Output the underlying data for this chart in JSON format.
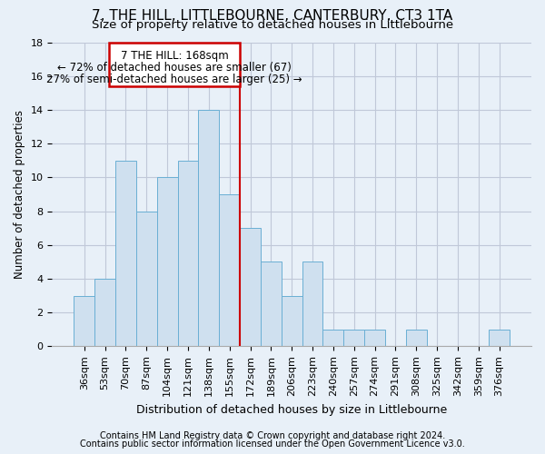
{
  "title": "7, THE HILL, LITTLEBOURNE, CANTERBURY, CT3 1TA",
  "subtitle": "Size of property relative to detached houses in Littlebourne",
  "xlabel": "Distribution of detached houses by size in Littlebourne",
  "ylabel": "Number of detached properties",
  "footer1": "Contains HM Land Registry data © Crown copyright and database right 2024.",
  "footer2": "Contains public sector information licensed under the Open Government Licence v3.0.",
  "annotation_title": "7 THE HILL: 168sqm",
  "annotation_line1": "← 72% of detached houses are smaller (67)",
  "annotation_line2": "27% of semi-detached houses are larger (25) →",
  "bar_categories": [
    "36sqm",
    "53sqm",
    "70sqm",
    "87sqm",
    "104sqm",
    "121sqm",
    "138sqm",
    "155sqm",
    "172sqm",
    "189sqm",
    "206sqm",
    "223sqm",
    "240sqm",
    "257sqm",
    "274sqm",
    "291sqm",
    "308sqm",
    "325sqm",
    "342sqm",
    "359sqm",
    "376sqm"
  ],
  "bar_values": [
    3,
    4,
    11,
    8,
    10,
    11,
    14,
    9,
    7,
    5,
    3,
    5,
    1,
    1,
    1,
    0,
    1,
    0,
    0,
    0,
    1
  ],
  "bar_color": "#cfe0ef",
  "bar_edge_color": "#6aafd4",
  "ref_line_index": 8,
  "ylim": [
    0,
    18
  ],
  "yticks": [
    0,
    2,
    4,
    6,
    8,
    10,
    12,
    14,
    16,
    18
  ],
  "bg_color": "#e8f0f8",
  "plot_bg_color": "#e8f0f8",
  "title_fontsize": 11,
  "subtitle_fontsize": 9.5,
  "annotation_box_edge": "#cc0000",
  "ref_line_color": "#cc0000",
  "grid_color": "#c0c8d8",
  "footer_fontsize": 7,
  "ylabel_fontsize": 8.5,
  "xlabel_fontsize": 9,
  "tick_fontsize": 8,
  "ann_fontsize": 8.5
}
